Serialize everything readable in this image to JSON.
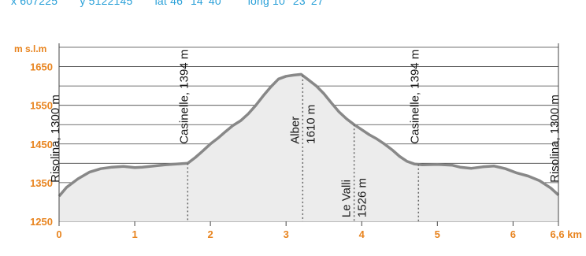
{
  "header": {
    "coords": [
      "x 607225",
      "y 5122145",
      "lat 46° 14' 40''",
      "long 10° 23' 27''"
    ]
  },
  "colors": {
    "accent": "#e8841f",
    "profile_line": "#888888",
    "profile_fill": "#ececec",
    "grid": "#444444",
    "coords_text": "#2aa0d8"
  },
  "chart_data": {
    "type": "area",
    "title": "",
    "xlabel": "",
    "ylabel": "m s.l.m",
    "x_unit_label": "6,6 km",
    "xlim": [
      0,
      6.6
    ],
    "ylim": [
      1250,
      1700
    ],
    "x_ticks": [
      0,
      1,
      2,
      3,
      4,
      5,
      6
    ],
    "x_tick_labels": [
      "0",
      "1",
      "2",
      "3",
      "4",
      "5",
      "6"
    ],
    "y_ticks": [
      1250,
      1350,
      1450,
      1550,
      1650
    ],
    "y_tick_labels": [
      "1250",
      "1350",
      "1450",
      "1550",
      "1650"
    ],
    "grid": true,
    "series": [
      {
        "x": [
          0,
          0.1,
          0.25,
          0.4,
          0.55,
          0.7,
          0.85,
          1.0,
          1.1,
          1.25,
          1.4,
          1.55,
          1.7,
          1.8,
          1.9,
          2.0,
          2.1,
          2.2,
          2.3,
          2.4,
          2.5,
          2.6,
          2.7,
          2.8,
          2.9,
          3.0,
          3.1,
          3.2,
          3.3,
          3.4,
          3.5,
          3.6,
          3.7,
          3.8,
          3.9,
          4.0,
          4.1,
          4.2,
          4.3,
          4.4,
          4.5,
          4.6,
          4.7,
          4.8,
          5.0,
          5.2,
          5.3,
          5.45,
          5.6,
          5.75,
          5.9,
          6.05,
          6.2,
          6.35,
          6.5,
          6.6
        ],
        "y": [
          1315,
          1338,
          1360,
          1377,
          1386,
          1390,
          1392,
          1389,
          1390,
          1393,
          1396,
          1398,
          1400,
          1415,
          1432,
          1450,
          1465,
          1482,
          1498,
          1510,
          1528,
          1550,
          1575,
          1598,
          1618,
          1625,
          1628,
          1630,
          1615,
          1600,
          1580,
          1556,
          1533,
          1515,
          1500,
          1487,
          1474,
          1463,
          1450,
          1435,
          1418,
          1405,
          1398,
          1396,
          1397,
          1395,
          1390,
          1387,
          1391,
          1393,
          1386,
          1375,
          1367,
          1355,
          1336,
          1318
        ]
      }
    ],
    "annotations": [
      {
        "x": 0.0,
        "lines": [
          "Risolina, 1300 m"
        ],
        "anchor": "bottom",
        "label_y": 1350,
        "dotted": false
      },
      {
        "x": 1.7,
        "lines": [
          "Casinelle, 1394 m"
        ],
        "anchor": "bottom",
        "label_y": 1450,
        "dotted": true
      },
      {
        "x": 3.22,
        "lines": [
          "Alber",
          "1610 m"
        ],
        "anchor": "bottom",
        "label_y": 1450,
        "dotted": true
      },
      {
        "x": 3.9,
        "lines": [
          "Le Valli",
          "1526 m"
        ],
        "anchor": "bottom",
        "label_y": 1260,
        "dotted": true
      },
      {
        "x": 4.75,
        "lines": [
          "Casinelle, 1394 m"
        ],
        "anchor": "bottom",
        "label_y": 1450,
        "dotted": true
      },
      {
        "x": 6.6,
        "lines": [
          "Risolina, 1300 m"
        ],
        "anchor": "bottom",
        "label_y": 1350,
        "dotted": false
      }
    ]
  }
}
